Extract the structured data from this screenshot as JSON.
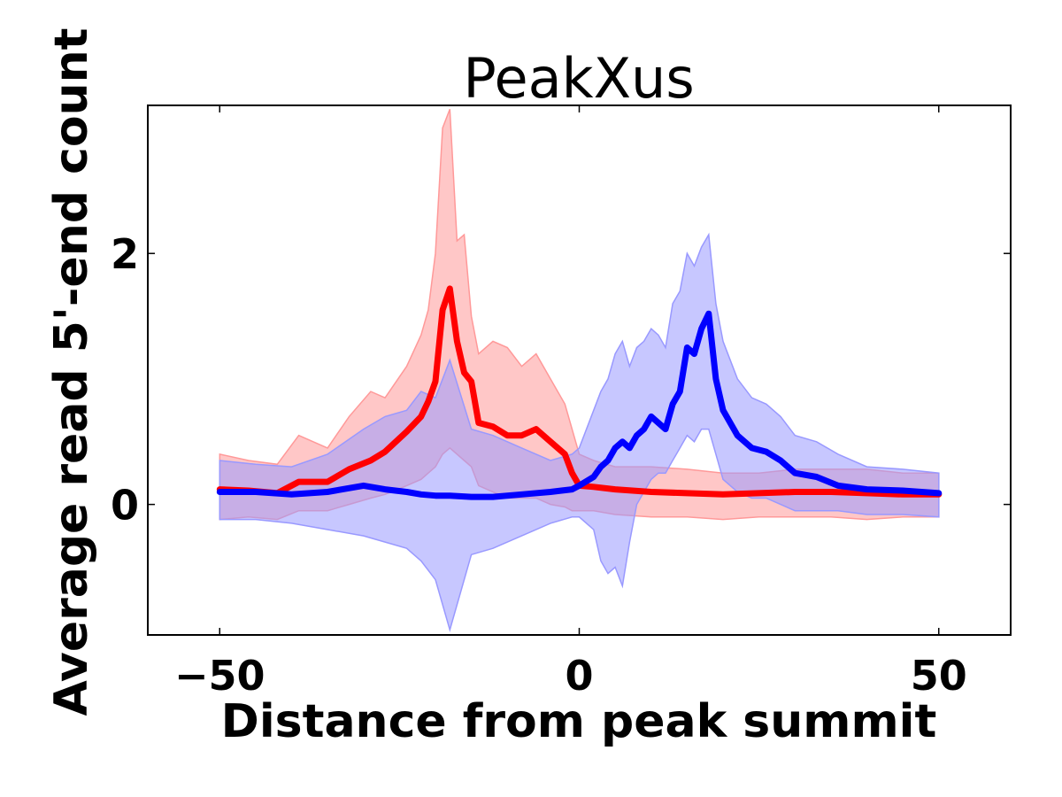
{
  "chart_data": {
    "type": "line",
    "title": "PeakXus",
    "xlabel": "Distance from peak summit",
    "ylabel": "Average read 5'-end count",
    "xlim": [
      -60,
      60
    ],
    "ylim": [
      -1.04,
      3.18
    ],
    "xticks": [
      -50,
      0,
      50
    ],
    "xtick_labels": [
      "−50",
      "0",
      "50"
    ],
    "yticks": [
      0,
      2
    ],
    "ytick_labels": [
      "0",
      "2"
    ],
    "grid": false,
    "legend": "none",
    "series": [
      {
        "color": "#ff0000",
        "band_color": "#ff9999",
        "x": [
          -50,
          -46,
          -42,
          -39,
          -35,
          -32,
          -29,
          -27,
          -24,
          -22,
          -21,
          -20,
          -19,
          -18,
          -17,
          -16,
          -15,
          -14,
          -12,
          -10,
          -8,
          -6,
          -4,
          -2,
          -1,
          0,
          2,
          5,
          10,
          15,
          20,
          25,
          30,
          35,
          40,
          45,
          50
        ],
        "y": [
          0.12,
          0.11,
          0.09,
          0.18,
          0.18,
          0.28,
          0.35,
          0.42,
          0.58,
          0.7,
          0.82,
          0.98,
          1.55,
          1.72,
          1.3,
          1.05,
          0.98,
          0.65,
          0.62,
          0.55,
          0.55,
          0.6,
          0.5,
          0.4,
          0.25,
          0.15,
          0.14,
          0.12,
          0.1,
          0.09,
          0.08,
          0.09,
          0.1,
          0.1,
          0.09,
          0.08,
          0.08
        ],
        "lower": [
          -0.12,
          -0.1,
          -0.12,
          -0.05,
          -0.05,
          0.0,
          0.05,
          0.08,
          0.15,
          0.2,
          0.25,
          0.3,
          0.4,
          0.45,
          0.4,
          0.35,
          0.3,
          0.15,
          0.1,
          0.05,
          0.05,
          0.05,
          0.0,
          -0.02,
          -0.05,
          -0.05,
          -0.05,
          -0.08,
          -0.1,
          -0.1,
          -0.12,
          -0.1,
          -0.1,
          -0.1,
          -0.12,
          -0.1,
          -0.1
        ],
        "upper": [
          0.4,
          0.35,
          0.32,
          0.55,
          0.45,
          0.7,
          0.9,
          0.85,
          1.1,
          1.35,
          1.55,
          2.0,
          3.0,
          3.15,
          2.1,
          2.15,
          1.5,
          1.2,
          1.3,
          1.25,
          1.1,
          1.2,
          1.0,
          0.8,
          0.6,
          0.4,
          0.35,
          0.3,
          0.3,
          0.28,
          0.25,
          0.25,
          0.28,
          0.28,
          0.28,
          0.25,
          0.25
        ]
      },
      {
        "color": "#0000ff",
        "band_color": "#9999ff",
        "x": [
          -50,
          -45,
          -40,
          -35,
          -30,
          -27,
          -24,
          -22,
          -20,
          -18,
          -15,
          -12,
          -8,
          -4,
          -1,
          0,
          2,
          3,
          4,
          5,
          6,
          7,
          8,
          9,
          10,
          11,
          12,
          13,
          14,
          15,
          16,
          17,
          18,
          19,
          20,
          22,
          24,
          26,
          28,
          30,
          33,
          36,
          40,
          45,
          50
        ],
        "y": [
          0.1,
          0.1,
          0.08,
          0.1,
          0.15,
          0.12,
          0.1,
          0.08,
          0.07,
          0.07,
          0.06,
          0.06,
          0.08,
          0.1,
          0.12,
          0.15,
          0.22,
          0.3,
          0.35,
          0.45,
          0.5,
          0.45,
          0.55,
          0.6,
          0.7,
          0.65,
          0.6,
          0.8,
          0.9,
          1.25,
          1.2,
          1.4,
          1.52,
          1.0,
          0.75,
          0.55,
          0.45,
          0.42,
          0.35,
          0.25,
          0.22,
          0.15,
          0.12,
          0.11,
          0.09
        ],
        "lower": [
          -0.12,
          -0.12,
          -0.15,
          -0.2,
          -0.25,
          -0.3,
          -0.35,
          -0.45,
          -0.6,
          -1.0,
          -0.4,
          -0.35,
          -0.25,
          -0.15,
          -0.1,
          -0.1,
          -0.2,
          -0.45,
          -0.55,
          -0.5,
          -0.65,
          -0.3,
          0.0,
          0.1,
          0.2,
          0.25,
          0.25,
          0.35,
          0.45,
          0.55,
          0.5,
          0.6,
          0.6,
          0.4,
          0.2,
          0.1,
          0.05,
          0.05,
          0.0,
          -0.05,
          -0.05,
          -0.05,
          -0.08,
          -0.08,
          -0.1
        ],
        "upper": [
          0.35,
          0.32,
          0.3,
          0.4,
          0.6,
          0.7,
          0.75,
          0.9,
          0.85,
          1.15,
          0.6,
          0.55,
          0.45,
          0.35,
          0.4,
          0.45,
          0.75,
          0.9,
          1.0,
          1.2,
          1.3,
          1.1,
          1.25,
          1.3,
          1.4,
          1.35,
          1.25,
          1.6,
          1.7,
          2.0,
          1.9,
          2.05,
          2.15,
          1.6,
          1.3,
          1.0,
          0.85,
          0.8,
          0.7,
          0.55,
          0.5,
          0.4,
          0.3,
          0.28,
          0.25
        ]
      }
    ]
  }
}
